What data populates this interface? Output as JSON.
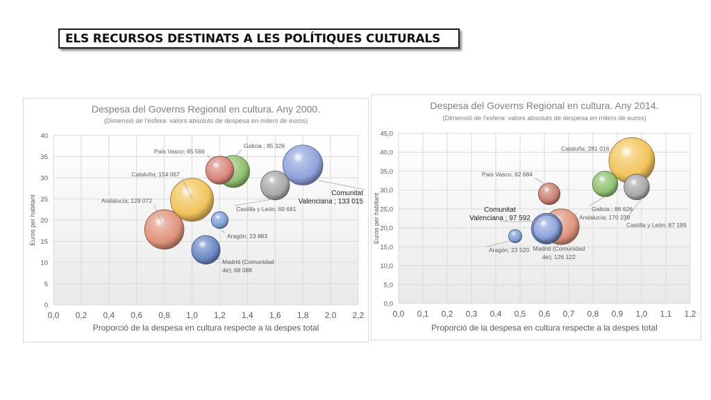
{
  "page": {
    "title": "ELS RECURSOS DESTINATS A LES POLÍTIQUES CULTURALS"
  },
  "chart_data": [
    {
      "type": "scatter",
      "title": "Despesa del Governs Regional en cultura. Any 2000.",
      "subtitle": "(Dimensió de l'esfera: valors absoluts de despesa en milers de euros)",
      "xlabel": "Proporció de la despesa en cultura respecte a la despes total",
      "ylabel": "Euros per habitant",
      "xlim": [
        0,
        2.2
      ],
      "ylim": [
        0,
        40
      ],
      "xticks": [
        "0,0",
        "0,2",
        "0,4",
        "0,6",
        "0,8",
        "1,0",
        "1,2",
        "1,4",
        "1,6",
        "1,8",
        "2,0",
        "2,2"
      ],
      "yticks": [
        "0",
        "5",
        "10",
        "15",
        "20",
        "25",
        "30",
        "35",
        "40"
      ],
      "grid": true,
      "points": [
        {
          "name": "Andalucía",
          "x": 0.8,
          "y": 17.8,
          "size": 129072,
          "label": "Andalucía; 129 072",
          "color": "#e0937a"
        },
        {
          "name": "Cataluña",
          "x": 1.0,
          "y": 24.8,
          "size": 154067,
          "label": "Cataluña; 154 067",
          "color": "#f2c45a"
        },
        {
          "name": "Galicia",
          "x": 1.3,
          "y": 31.5,
          "size": 85326,
          "label": "Galicia ; 85 326",
          "color": "#8fbf6e"
        },
        {
          "name": "País Vasco",
          "x": 1.2,
          "y": 31.8,
          "size": 65566,
          "label": "País Vasco; 65 566",
          "color": "#d8867a"
        },
        {
          "name": "Castilla y León",
          "x": 1.6,
          "y": 28.2,
          "size": 69681,
          "label": "Castilla y León; 69 681",
          "color": "#a8a8a8"
        },
        {
          "name": "Comunitat Valenciana",
          "x": 1.8,
          "y": 33.0,
          "size": 133015,
          "label": "Comunitat Valenciana ; 133 015",
          "color": "#8fa3dc"
        },
        {
          "name": "Aragón",
          "x": 1.2,
          "y": 20.0,
          "size": 23883,
          "label": "Aragón; 23 883",
          "color": "#7ea0d6"
        },
        {
          "name": "Madrid (Comunidad de)",
          "x": 1.1,
          "y": 13.0,
          "size": 68088,
          "label": "Madrid (Comunidad de); 68 088",
          "color": "#6a88c4"
        }
      ]
    },
    {
      "type": "scatter",
      "title": "Despesa del Governs Regional en cultura. Any 2014.",
      "subtitle": "(Dimensió de l'esfera: valors absoluts de despesa en milers de euros)",
      "xlabel": "Proporció de la despesa en cultura respecte a la despes total",
      "ylabel": "Euros per habitant",
      "xlim": [
        0,
        1.2
      ],
      "ylim": [
        0,
        45
      ],
      "xticks": [
        "0,0",
        "0,1",
        "0,2",
        "0,3",
        "0,4",
        "0,5",
        "0,6",
        "0,7",
        "0,8",
        "0,9",
        "1,0",
        "1,1",
        "1,2"
      ],
      "yticks": [
        "0,0",
        "5,0",
        "10,0",
        "15,0",
        "20,0",
        "25,0",
        "30,0",
        "35,0",
        "40,0",
        "45,0"
      ],
      "grid": true,
      "points": [
        {
          "name": "Cataluña",
          "x": 0.96,
          "y": 37.8,
          "size": 281016,
          "label": "Cataluña; 281 016",
          "color": "#f2c45a"
        },
        {
          "name": "País Vasco",
          "x": 0.62,
          "y": 29.0,
          "size": 62684,
          "label": "País Vasco; 62 684",
          "color": "#c88070"
        },
        {
          "name": "Galicia",
          "x": 0.85,
          "y": 31.6,
          "size": 86626,
          "label": "Galicia ; 86 626",
          "color": "#8fbf6e"
        },
        {
          "name": "Castilla y León",
          "x": 0.98,
          "y": 30.8,
          "size": 87189,
          "label": "Castilla y León; 87 189",
          "color": "#a8a8a8"
        },
        {
          "name": "Andalucía",
          "x": 0.67,
          "y": 20.3,
          "size": 170239,
          "label": "Andalucía; 170 239",
          "color": "#e0937a"
        },
        {
          "name": "Comunitat Valenciana",
          "x": 0.61,
          "y": 19.8,
          "size": 97592,
          "label": "Comunitat Valenciana ; 97 592",
          "color": "#8fa3dc"
        },
        {
          "name": "Aragón",
          "x": 0.48,
          "y": 17.8,
          "size": 23520,
          "label": "Aragón; 23 520",
          "color": "#7ea0d6"
        },
        {
          "name": "Madrid (Comunidad de)",
          "x": 0.61,
          "y": 19.8,
          "size": 126122,
          "label": "Madrid (Comunidad de); 126 122",
          "color": "#6a88c4"
        }
      ]
    }
  ]
}
